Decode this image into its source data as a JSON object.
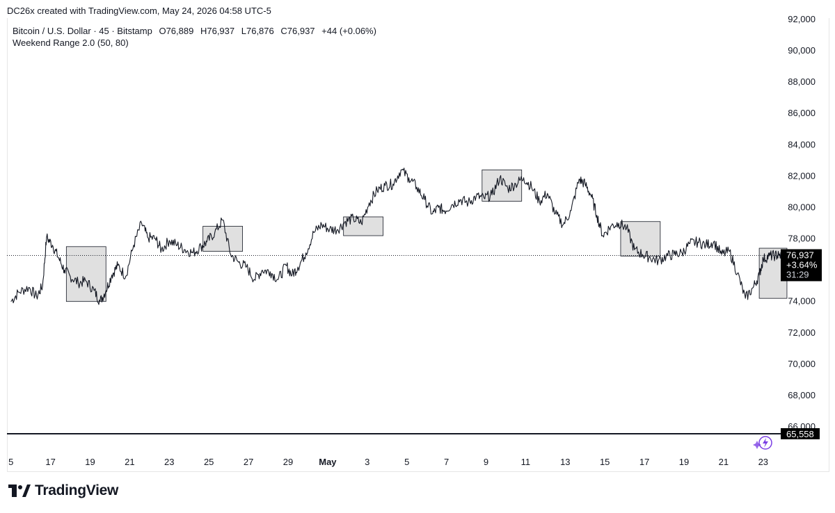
{
  "header": {
    "created_by": "DC26x created with TradingView.com, May 24, 2026 04:58 UTC-5"
  },
  "legend": {
    "symbol": "Bitcoin / U.S. Dollar · 45 · Bitstamp",
    "open": "O76,889",
    "high": "H76,937",
    "low": "L76,876",
    "close": "C76,937",
    "change": "+44 (+0.06%)",
    "indicator": "Weekend Range 2.0 (50, 80)"
  },
  "price_label": {
    "price": "76,937",
    "change_pct": "+3.64%",
    "countdown": "31:29"
  },
  "level_label": "65,558",
  "footer": {
    "brand": "TradingView"
  },
  "colors": {
    "line": "#131722",
    "box_fill": "#e0e0e0",
    "box_stroke": "#131722",
    "label_bg": "#000000",
    "accent": "#7b3fe4"
  },
  "chart_data": {
    "type": "line",
    "title": "Bitcoin / U.S. Dollar · 45 · Bitstamp",
    "ylim": [
      64800,
      92000
    ],
    "y_ticks": [
      66000,
      68000,
      70000,
      72000,
      74000,
      76000,
      78000,
      80000,
      82000,
      84000,
      86000,
      88000,
      90000,
      92000
    ],
    "y_tick_labels": [
      "66,000",
      "68,000",
      "70,000",
      "72,000",
      "74,000",
      "76,000",
      "78,000",
      "80,000",
      "82,000",
      "84,000",
      "86,000",
      "88,000",
      "90,000",
      "92,000"
    ],
    "x_tick_labels": [
      {
        "label": "5",
        "day": 15
      },
      {
        "label": "17",
        "day": 17
      },
      {
        "label": "19",
        "day": 19
      },
      {
        "label": "21",
        "day": 21
      },
      {
        "label": "23",
        "day": 23
      },
      {
        "label": "25",
        "day": 25
      },
      {
        "label": "27",
        "day": 27
      },
      {
        "label": "29",
        "day": 29
      },
      {
        "label": "May",
        "day": 31,
        "bold": true
      },
      {
        "label": "3",
        "day": 33
      },
      {
        "label": "5",
        "day": 35
      },
      {
        "label": "7",
        "day": 37
      },
      {
        "label": "9",
        "day": 39
      },
      {
        "label": "11",
        "day": 41
      },
      {
        "label": "13",
        "day": 43
      },
      {
        "label": "15",
        "day": 45
      },
      {
        "label": "17",
        "day": 47
      },
      {
        "label": "19",
        "day": 49
      },
      {
        "label": "21",
        "day": 51
      },
      {
        "label": "23",
        "day": 53
      }
    ],
    "series": [
      {
        "x_days": [
          15.0,
          15.4,
          15.9,
          16.3,
          16.6,
          16.8,
          17.1,
          17.4,
          17.7,
          18.0,
          18.4,
          18.8,
          19.2,
          19.5,
          19.8,
          20.1,
          20.4,
          20.8,
          21.2,
          21.6,
          21.9,
          22.3,
          22.6,
          23.0,
          23.4,
          23.8,
          24.2,
          24.6,
          24.9,
          25.3,
          25.7,
          26.1,
          26.5,
          26.9,
          27.3,
          27.7,
          28.1,
          28.5,
          28.9,
          29.2,
          29.5,
          29.9,
          30.3,
          30.7,
          31.1,
          31.5,
          31.9,
          32.3,
          32.7,
          33.1,
          33.5,
          33.9,
          34.3,
          34.7,
          35.1,
          35.5,
          35.9,
          36.3,
          36.6,
          36.9,
          37.3,
          37.7,
          38.1,
          38.5,
          38.9,
          39.3,
          39.7,
          40.1,
          40.5,
          40.9,
          41.3,
          41.7,
          42.1,
          42.5,
          42.9,
          43.3,
          43.7,
          44.0,
          44.3,
          44.6,
          44.9,
          45.3,
          45.7,
          46.1,
          46.5,
          46.9,
          47.3,
          47.7,
          48.1,
          48.5,
          48.9,
          49.3,
          49.7,
          50.1,
          50.5,
          50.9,
          51.3,
          51.7,
          52.1,
          52.5,
          52.8,
          53.0,
          53.3,
          53.6,
          53.8,
          54.1
        ],
        "values": [
          74000,
          74600,
          74900,
          74300,
          75000,
          78100,
          77600,
          76800,
          76000,
          75600,
          75200,
          75300,
          74700,
          74000,
          74700,
          75700,
          76300,
          75600,
          77600,
          79000,
          78100,
          78000,
          77300,
          77900,
          77600,
          77300,
          77100,
          77500,
          77800,
          78400,
          79200,
          77000,
          76500,
          76200,
          75400,
          76000,
          75900,
          75400,
          76300,
          75700,
          76200,
          77100,
          78400,
          78900,
          78600,
          78600,
          79100,
          79300,
          79000,
          80300,
          81100,
          81400,
          81500,
          82400,
          81900,
          81300,
          80500,
          79600,
          80000,
          79800,
          80200,
          80500,
          80300,
          80700,
          80600,
          80800,
          81900,
          81200,
          81500,
          81900,
          81300,
          80400,
          80900,
          79600,
          78900,
          79800,
          81800,
          81500,
          80800,
          79500,
          78200,
          78800,
          79000,
          78700,
          77300,
          77000,
          76800,
          76600,
          76900,
          77000,
          77100,
          77700,
          77800,
          77600,
          77800,
          77000,
          77200,
          75800,
          74200,
          74900,
          75700,
          76700,
          76900,
          76937,
          76937,
          76937
        ]
      }
    ],
    "boxes": [
      {
        "x0": 17.8,
        "x1": 19.8,
        "y0": 74000,
        "y1": 77500
      },
      {
        "x0": 24.7,
        "x1": 26.7,
        "y0": 77200,
        "y1": 78800
      },
      {
        "x0": 31.8,
        "x1": 33.8,
        "y0": 78200,
        "y1": 79400
      },
      {
        "x0": 38.8,
        "x1": 40.8,
        "y0": 80400,
        "y1": 82400
      },
      {
        "x0": 45.8,
        "x1": 47.8,
        "y0": 76900,
        "y1": 79100
      },
      {
        "x0": 52.8,
        "x1": 54.2,
        "y0": 74200,
        "y1": 77400
      }
    ],
    "last_price": 76937,
    "horizontal_line": 65558
  }
}
